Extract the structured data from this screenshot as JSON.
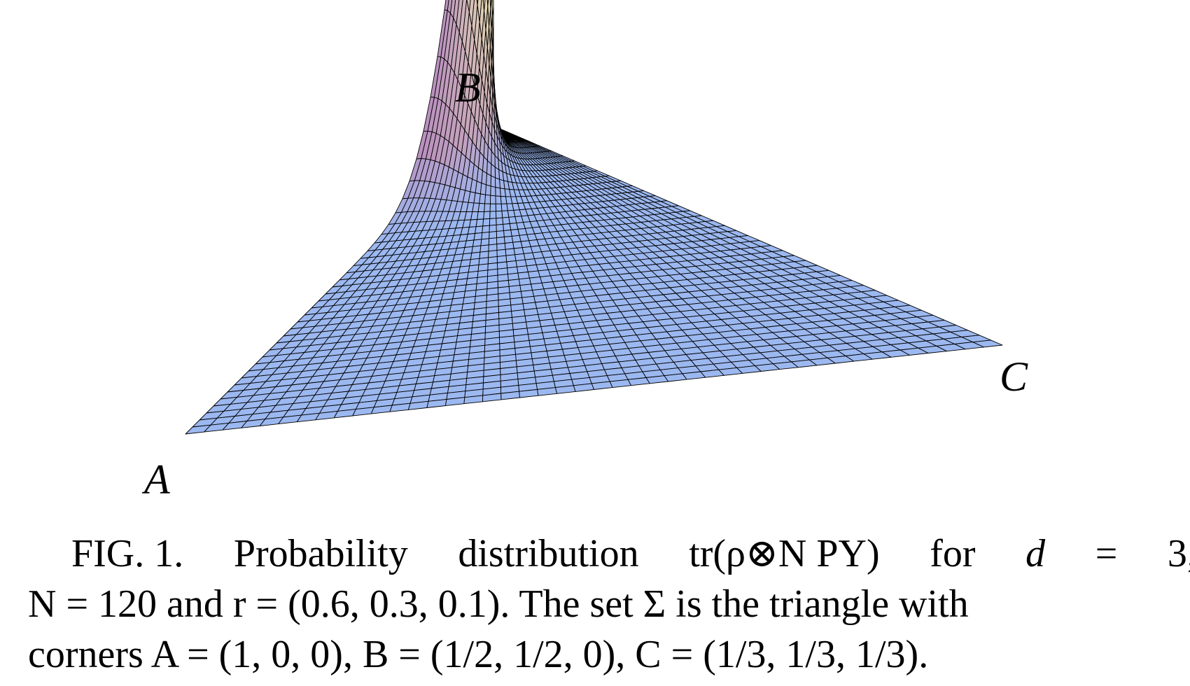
{
  "figure": {
    "corner_a": "A",
    "corner_b": "B",
    "corner_c": "C",
    "surface_colors": {
      "plane": "#9cb8f0",
      "mesh_line": "#000000",
      "peak_dark": "#2a34b0",
      "peak_mid": "#b98fbf",
      "peak_light": "#f4f0b0"
    }
  },
  "caption": {
    "line1": [
      "FIG. 1.",
      "Probability",
      "distribution",
      "tr(ρ⊗N PY)",
      "for",
      "d",
      "=",
      "3,"
    ],
    "line2": "N = 120 and r = (0.6, 0.3, 0.1).  The set Σ is the triangle with",
    "line3": "corners A = (1, 0, 0),  B = (1/2, 1/2, 0),  C = (1/3, 1/3, 1/3)."
  }
}
